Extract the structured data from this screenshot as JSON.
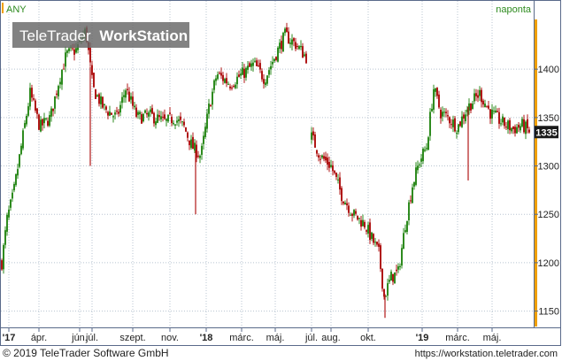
{
  "instrument": "ANY",
  "period_label": "naponta",
  "watermark": {
    "brand_plain": "TeleTrader",
    "brand_bold": "WorkStation"
  },
  "footer": {
    "copyright": "© 2019 TeleTrader Software GmbH",
    "url": "https://workstation.teletrader.com"
  },
  "colors": {
    "up": "#2e8b1f",
    "down": "#b01717",
    "accent": "#f0a000",
    "grid": "#b8c4d0",
    "border": "#5a6a8a"
  },
  "chart_data": {
    "type": "candlestick",
    "ylim": [
      1135,
      1455
    ],
    "y_ticks": [
      1150,
      1200,
      1250,
      1300,
      1350,
      1400
    ],
    "last_value": "1335",
    "x_ticks": [
      {
        "label": "'17",
        "bold": true
      },
      {
        "label": "ápr.",
        "bold": false
      },
      {
        "label": "jún.",
        "bold": false
      },
      {
        "label": "júl.",
        "bold": false
      },
      {
        "label": "szept.",
        "bold": false
      },
      {
        "label": "nov.",
        "bold": false
      },
      {
        "label": "'18",
        "bold": true
      },
      {
        "label": "márc.",
        "bold": false
      },
      {
        "label": "máj.",
        "bold": false
      },
      {
        "label": "júl.",
        "bold": false
      },
      {
        "label": "aug.",
        "bold": false
      },
      {
        "label": "okt.",
        "bold": false
      },
      {
        "label": "'19",
        "bold": true
      },
      {
        "label": "márc.",
        "bold": false
      },
      {
        "label": "máj.",
        "bold": false
      }
    ],
    "close_path": [
      [
        0,
        1200
      ],
      [
        6,
        1245
      ],
      [
        13,
        1270
      ],
      [
        22,
        1320
      ],
      [
        32,
        1375
      ],
      [
        43,
        1340
      ],
      [
        55,
        1350
      ],
      [
        65,
        1390
      ],
      [
        73,
        1415
      ],
      [
        84,
        1420
      ],
      [
        95,
        1440
      ],
      [
        103,
        1380
      ],
      [
        115,
        1360
      ],
      [
        130,
        1350
      ],
      [
        140,
        1380
      ],
      [
        153,
        1350
      ],
      [
        168,
        1352
      ],
      [
        185,
        1345
      ],
      [
        195,
        1350
      ],
      [
        206,
        1340
      ],
      [
        215,
        1320
      ],
      [
        225,
        1310
      ],
      [
        234,
        1360
      ],
      [
        243,
        1395
      ],
      [
        258,
        1385
      ],
      [
        272,
        1395
      ],
      [
        285,
        1405
      ],
      [
        297,
        1390
      ],
      [
        311,
        1418
      ],
      [
        320,
        1435
      ],
      [
        333,
        1425
      ],
      [
        346,
        1410
      ],
      [
        350,
        1330
      ],
      [
        360,
        1310
      ],
      [
        372,
        1300
      ],
      [
        384,
        1270
      ],
      [
        397,
        1250
      ],
      [
        410,
        1240
      ],
      [
        418,
        1225
      ],
      [
        426,
        1210
      ],
      [
        432,
        1165
      ],
      [
        440,
        1185
      ],
      [
        448,
        1190
      ],
      [
        456,
        1240
      ],
      [
        464,
        1280
      ],
      [
        472,
        1305
      ],
      [
        480,
        1320
      ],
      [
        488,
        1380
      ],
      [
        496,
        1355
      ],
      [
        504,
        1350
      ],
      [
        515,
        1340
      ],
      [
        526,
        1360
      ],
      [
        540,
        1375
      ],
      [
        552,
        1355
      ],
      [
        565,
        1345
      ],
      [
        578,
        1338
      ],
      [
        588,
        1342
      ],
      [
        597,
        1335
      ]
    ],
    "spikes": [
      {
        "x": 100,
        "low": 1300
      },
      {
        "x": 219,
        "low": 1250
      },
      {
        "x": 527,
        "low": 1285
      },
      {
        "x": 433,
        "low": 1143
      }
    ]
  }
}
